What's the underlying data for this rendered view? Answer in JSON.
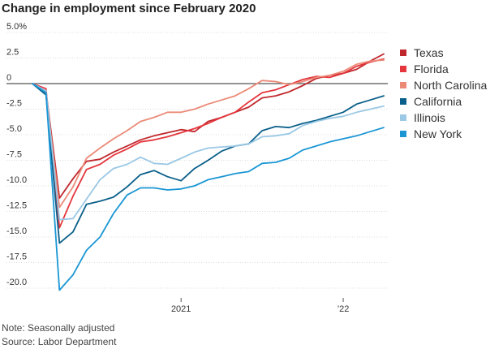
{
  "chart_data": {
    "type": "line",
    "title": "Change in employment since February 2020",
    "xlabel": "",
    "ylabel": "",
    "ylim": [
      -20,
      5
    ],
    "y_ticks": [
      {
        "value": 5,
        "label": "5.0%"
      },
      {
        "value": 2.5,
        "label": "2.5"
      },
      {
        "value": 0,
        "label": "0"
      },
      {
        "value": -2.5,
        "label": "-2.5"
      },
      {
        "value": -5,
        "label": "-5.0"
      },
      {
        "value": -7.5,
        "label": "-7.5"
      },
      {
        "value": -10,
        "label": "-10.0"
      },
      {
        "value": -12.5,
        "label": "-12.5"
      },
      {
        "value": -15,
        "label": "-15.0"
      },
      {
        "value": -17.5,
        "label": "-17.5"
      },
      {
        "value": -20,
        "label": "-20.0"
      }
    ],
    "x": [
      "2020-02",
      "2020-03",
      "2020-04",
      "2020-05",
      "2020-06",
      "2020-07",
      "2020-08",
      "2020-09",
      "2020-10",
      "2020-11",
      "2020-12",
      "2021-01",
      "2021-02",
      "2021-03",
      "2021-04",
      "2021-05",
      "2021-06",
      "2021-07",
      "2021-08",
      "2021-09",
      "2021-10",
      "2021-11",
      "2021-12",
      "2022-01",
      "2022-02",
      "2022-03",
      "2022-04"
    ],
    "x_ticks": [
      {
        "value": "2021-01",
        "label": "2021"
      },
      {
        "value": "2022-01",
        "label": "’22"
      }
    ],
    "grid": "horizontal",
    "legend": "right",
    "series": [
      {
        "name": "Texas",
        "color": "#c0282d",
        "values": [
          0,
          -0.8,
          -11.2,
          -9.3,
          -7.6,
          -7.4,
          -6.7,
          -6.1,
          -5.5,
          -5.1,
          -4.8,
          -4.5,
          -4.7,
          -3.7,
          -3.3,
          -2.8,
          -2.3,
          -1.4,
          -1.2,
          -0.8,
          -0.2,
          0.5,
          0.8,
          1.0,
          1.4,
          2.2,
          2.9
        ]
      },
      {
        "name": "Florida",
        "color": "#e4363c",
        "values": [
          0,
          -0.5,
          -14.1,
          -11.0,
          -8.4,
          -7.9,
          -7.0,
          -6.4,
          -5.7,
          -5.5,
          -5.2,
          -4.8,
          -4.4,
          -3.9,
          -3.3,
          -2.8,
          -1.8,
          -0.9,
          -0.6,
          -0.1,
          0.4,
          0.7,
          0.6,
          1.0,
          1.7,
          2.1,
          2.4
        ]
      },
      {
        "name": "North Carolina",
        "color": "#ec8a78",
        "values": [
          0,
          -1.0,
          -12.1,
          -10.1,
          -7.3,
          -6.3,
          -5.4,
          -4.6,
          -3.7,
          -3.3,
          -2.8,
          -2.8,
          -2.5,
          -2.0,
          -1.6,
          -1.2,
          -0.5,
          0.3,
          0.2,
          -0.1,
          0.2,
          0.6,
          0.8,
          1.2,
          1.9,
          2.2,
          2.3
        ]
      },
      {
        "name": "California",
        "color": "#0a5f8a",
        "values": [
          0,
          -1.1,
          -15.6,
          -14.5,
          -11.8,
          -11.5,
          -11.1,
          -10.1,
          -8.9,
          -8.5,
          -9.1,
          -9.5,
          -8.3,
          -7.5,
          -6.6,
          -6.1,
          -5.9,
          -4.6,
          -4.2,
          -4.3,
          -3.9,
          -3.6,
          -3.2,
          -2.8,
          -2.0,
          -1.6,
          -1.2
        ]
      },
      {
        "name": "Illinois",
        "color": "#9ac8e5",
        "values": [
          0,
          -0.7,
          -13.3,
          -13.2,
          -11.3,
          -9.4,
          -8.3,
          -7.9,
          -7.2,
          -7.8,
          -7.9,
          -7.3,
          -6.7,
          -6.3,
          -6.2,
          -6.1,
          -5.9,
          -5.2,
          -5.1,
          -4.9,
          -4.1,
          -3.7,
          -3.4,
          -3.2,
          -2.8,
          -2.5,
          -2.2
        ]
      },
      {
        "name": "New York",
        "color": "#1a96d4",
        "values": [
          0,
          -0.9,
          -20.2,
          -18.7,
          -16.3,
          -15.0,
          -12.7,
          -10.9,
          -10.2,
          -10.2,
          -10.4,
          -10.3,
          -10.0,
          -9.4,
          -9.1,
          -8.8,
          -8.6,
          -7.8,
          -7.7,
          -7.3,
          -6.5,
          -6.1,
          -5.7,
          -5.4,
          -5.1,
          -4.7,
          -4.3
        ]
      }
    ]
  },
  "footnotes": {
    "note": "Note: Seasonally adjusted",
    "source": "Source: Labor Department"
  }
}
